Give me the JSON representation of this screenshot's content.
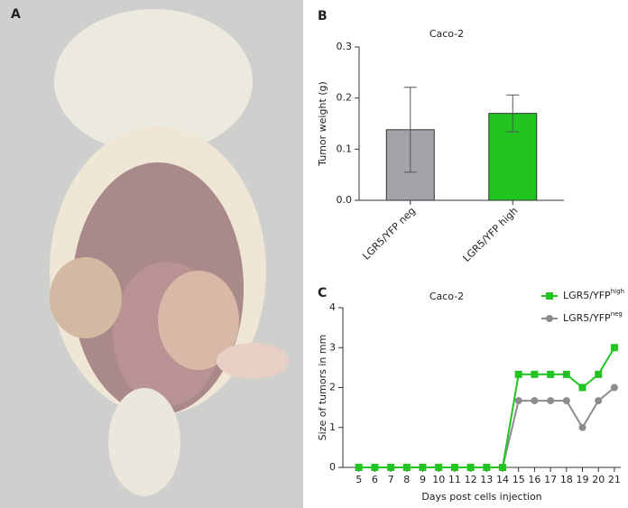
{
  "panel_labels": [
    "A",
    "B",
    "C"
  ],
  "chart_data": [
    {
      "type": "bar",
      "title": "Caco-2",
      "y_label": "Tumor weight (g)",
      "categories": [
        "LGR5/YFP neg",
        "LGR5/YFP high"
      ],
      "values": [
        0.138,
        0.17
      ],
      "errors": [
        0.083,
        0.036
      ],
      "colors": [
        "#a3a3a8",
        "#22c422"
      ],
      "ylim": [
        0,
        0.3
      ],
      "yticks": [
        {
          "value": 0,
          "label": "0.0"
        },
        0.1,
        0.2,
        0.3
      ]
    },
    {
      "type": "line",
      "title": "Caco-2",
      "x_label": "Days post cells injection",
      "y_label": "Size of tumors in mm",
      "x": [
        5,
        6,
        7,
        8,
        9,
        10,
        11,
        12,
        13,
        14,
        15,
        16,
        17,
        18,
        19,
        20,
        21
      ],
      "series": [
        {
          "name": "LGR5/YFP",
          "superscript": "high",
          "color": "#22c422",
          "marker": "square",
          "values": [
            0,
            0,
            0,
            0,
            0,
            0,
            0,
            0,
            0,
            0,
            2.33,
            2.33,
            2.33,
            2.33,
            2,
            2.33,
            3
          ]
        },
        {
          "name": "LGR5/YFP",
          "superscript": "neg",
          "color": "#8c8c8c",
          "marker": "circle",
          "values": [
            0,
            0,
            0,
            0,
            0,
            0,
            0,
            0,
            0,
            0,
            1.67,
            1.67,
            1.67,
            1.67,
            1,
            1.67,
            2
          ]
        }
      ],
      "xlim": [
        4,
        21.4
      ],
      "xticks": [
        5,
        6,
        7,
        8,
        9,
        10,
        11,
        12,
        13,
        14,
        15,
        16,
        17,
        18,
        19,
        20,
        21
      ],
      "ylim": [
        0,
        4
      ],
      "yticks": [
        0,
        1,
        2,
        3,
        4
      ],
      "legend": "upper right"
    }
  ]
}
